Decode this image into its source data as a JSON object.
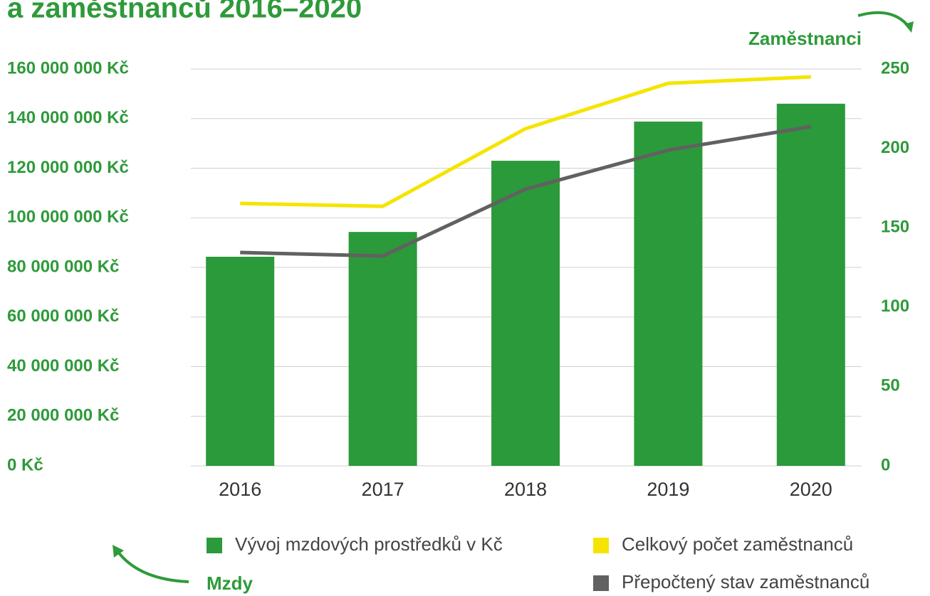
{
  "chart_data": {
    "type": "bar",
    "title": "a zaměstnanců 2016–2020",
    "y_axis_title": "Mzdy",
    "y2_axis_title": "Zaměstnanci",
    "categories": [
      "2016",
      "2017",
      "2018",
      "2019",
      "2020"
    ],
    "series": [
      {
        "name": "Vývoj mzdových prostředků v Kč",
        "type": "bar",
        "color": "#2b9a3a",
        "axis": "y",
        "values": [
          84300000,
          94300000,
          123000000,
          138800000,
          146000000
        ]
      },
      {
        "name": "Celkový počet zaměstnanců",
        "type": "line",
        "color": "#f5e400",
        "axis": "y2",
        "values": [
          165.3,
          163.5,
          212.4,
          241,
          245
        ]
      },
      {
        "name": "Přepočtený stav zaměstnanců",
        "type": "line",
        "color": "#616161",
        "axis": "y2",
        "values": [
          134.4,
          132.2,
          174.3,
          198.9,
          213.7
        ]
      }
    ],
    "ylim": [
      0,
      160000000
    ],
    "yticks": [
      {
        "value": 0,
        "label": "0 Kč"
      },
      {
        "value": 20000000,
        "label": "20 000 000 Kč"
      },
      {
        "value": 40000000,
        "label": "40 000 000 Kč"
      },
      {
        "value": 60000000,
        "label": "60 000 000 Kč"
      },
      {
        "value": 80000000,
        "label": "80 000 000 Kč"
      },
      {
        "value": 100000000,
        "label": "100 000 000 Kč"
      },
      {
        "value": 120000000,
        "label": "120 000 000 Kč"
      },
      {
        "value": 140000000,
        "label": "140 000 000 Kč"
      },
      {
        "value": 160000000,
        "label": "160 000 000 Kč"
      }
    ],
    "y2lim": [
      0,
      250
    ],
    "y2ticks": [
      0,
      50,
      100,
      150,
      200,
      250
    ],
    "grid": true
  }
}
